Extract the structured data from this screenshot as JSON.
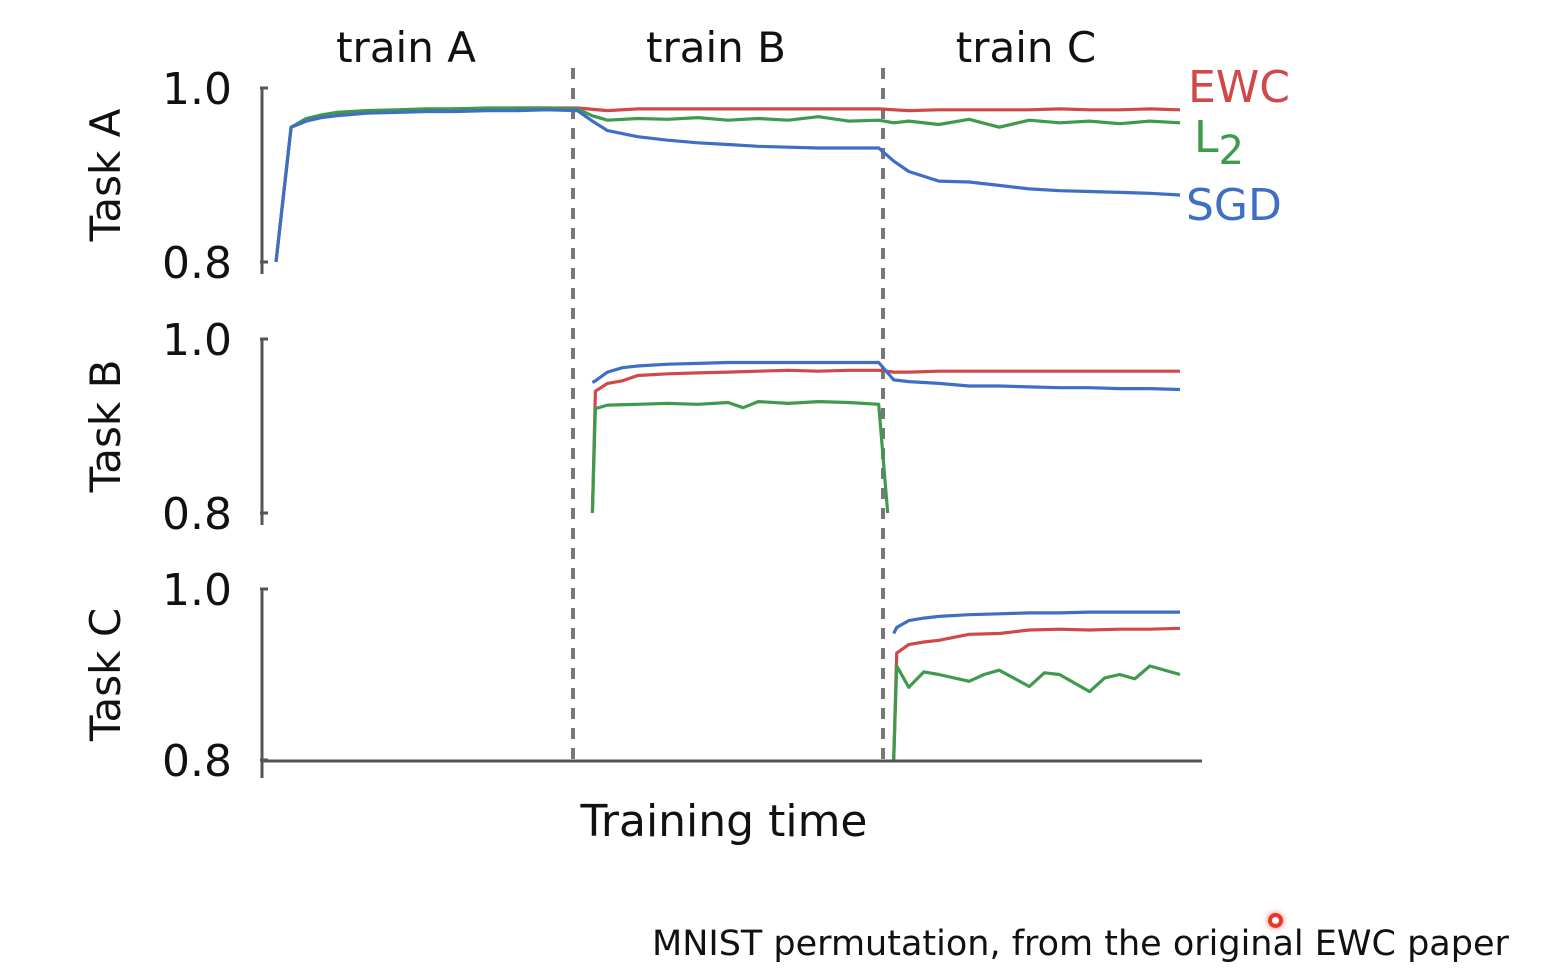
{
  "chart_data": {
    "type": "line",
    "x_label": "Training time",
    "phases": [
      "train A",
      "train B",
      "train C"
    ],
    "colors": {
      "EWC": "#d0494a",
      "L2": "#3e9a4d",
      "SGD": "#3f6fc5",
      "grid": "#777777"
    },
    "legend": [
      {
        "name": "EWC",
        "sub": ""
      },
      {
        "name": "L",
        "sub": "2"
      },
      {
        "name": "SGD",
        "sub": ""
      }
    ],
    "panels": [
      {
        "ylabel": "Task A",
        "ylim": [
          0.8,
          1.0
        ],
        "yticks": [
          "1.0",
          "0.8"
        ],
        "series": [
          {
            "name": "EWC",
            "x": [
              0.0,
              0.05,
              0.1,
              0.15,
              0.2,
              0.3,
              0.4,
              0.5,
              0.6,
              0.7,
              0.8,
              0.9,
              1.0,
              1.1,
              1.2,
              1.3,
              1.4,
              1.5,
              1.6,
              1.7,
              1.8,
              1.9,
              2.0,
              2.1,
              2.2,
              2.3,
              2.4,
              2.5,
              2.6,
              2.7,
              2.8,
              2.9,
              3.0
            ],
            "y": [
              0.8,
              0.955,
              0.962,
              0.966,
              0.969,
              0.972,
              0.974,
              0.975,
              0.976,
              0.976,
              0.977,
              0.977,
              0.977,
              0.974,
              0.976,
              0.976,
              0.976,
              0.976,
              0.976,
              0.976,
              0.976,
              0.976,
              0.976,
              0.974,
              0.975,
              0.975,
              0.975,
              0.975,
              0.976,
              0.975,
              0.975,
              0.976,
              0.975
            ]
          },
          {
            "name": "L2",
            "x": [
              0.0,
              0.05,
              0.1,
              0.15,
              0.2,
              0.3,
              0.4,
              0.5,
              0.6,
              0.7,
              0.8,
              0.9,
              1.0,
              1.05,
              1.1,
              1.2,
              1.3,
              1.4,
              1.5,
              1.6,
              1.7,
              1.8,
              1.9,
              2.0,
              2.05,
              2.1,
              2.2,
              2.3,
              2.4,
              2.5,
              2.6,
              2.7,
              2.8,
              2.9,
              3.0
            ],
            "y": [
              0.8,
              0.955,
              0.965,
              0.969,
              0.972,
              0.974,
              0.975,
              0.976,
              0.976,
              0.977,
              0.977,
              0.977,
              0.976,
              0.968,
              0.963,
              0.965,
              0.964,
              0.966,
              0.963,
              0.965,
              0.963,
              0.967,
              0.962,
              0.963,
              0.96,
              0.962,
              0.958,
              0.964,
              0.955,
              0.963,
              0.96,
              0.962,
              0.959,
              0.962,
              0.96
            ]
          },
          {
            "name": "SGD",
            "x": [
              0.0,
              0.05,
              0.1,
              0.15,
              0.2,
              0.3,
              0.4,
              0.5,
              0.6,
              0.7,
              0.8,
              0.9,
              1.0,
              1.05,
              1.1,
              1.2,
              1.3,
              1.4,
              1.5,
              1.6,
              1.7,
              1.8,
              1.9,
              2.0,
              2.05,
              2.1,
              2.2,
              2.3,
              2.4,
              2.5,
              2.6,
              2.7,
              2.8,
              2.9,
              3.0
            ],
            "y": [
              0.8,
              0.955,
              0.962,
              0.966,
              0.968,
              0.971,
              0.972,
              0.973,
              0.973,
              0.974,
              0.974,
              0.975,
              0.974,
              0.962,
              0.951,
              0.944,
              0.94,
              0.937,
              0.935,
              0.933,
              0.932,
              0.931,
              0.931,
              0.931,
              0.916,
              0.904,
              0.893,
              0.892,
              0.888,
              0.884,
              0.882,
              0.881,
              0.88,
              0.879,
              0.877
            ]
          }
        ]
      },
      {
        "ylabel": "Task B",
        "ylim": [
          0.8,
          1.0
        ],
        "yticks": [
          "1.0",
          "0.8"
        ],
        "series": [
          {
            "name": "EWC",
            "x": [
              1.05,
              1.06,
              1.1,
              1.15,
              1.2,
              1.3,
              1.4,
              1.5,
              1.6,
              1.7,
              1.8,
              1.9,
              2.0,
              2.05,
              2.1,
              2.2,
              2.3,
              2.4,
              2.5,
              2.6,
              2.7,
              2.8,
              2.9,
              3.0
            ],
            "y": [
              0.8,
              0.94,
              0.949,
              0.952,
              0.958,
              0.96,
              0.961,
              0.962,
              0.963,
              0.964,
              0.963,
              0.964,
              0.964,
              0.962,
              0.962,
              0.963,
              0.963,
              0.963,
              0.963,
              0.963,
              0.963,
              0.963,
              0.963,
              0.963
            ]
          },
          {
            "name": "L2",
            "x": [
              1.05,
              1.06,
              1.1,
              1.2,
              1.3,
              1.4,
              1.5,
              1.55,
              1.6,
              1.7,
              1.8,
              1.9,
              2.0,
              2.03
            ],
            "y": [
              0.8,
              0.92,
              0.924,
              0.925,
              0.926,
              0.925,
              0.927,
              0.921,
              0.928,
              0.926,
              0.928,
              0.927,
              0.925,
              0.8
            ]
          },
          {
            "name": "SGD",
            "x": [
              1.05,
              1.06,
              1.1,
              1.15,
              1.2,
              1.3,
              1.4,
              1.5,
              1.6,
              1.7,
              1.8,
              1.9,
              2.0,
              2.05,
              2.1,
              2.2,
              2.3,
              2.4,
              2.5,
              2.6,
              2.7,
              2.8,
              2.9,
              3.0
            ],
            "y": [
              0.95,
              0.952,
              0.962,
              0.967,
              0.969,
              0.971,
              0.972,
              0.973,
              0.973,
              0.973,
              0.973,
              0.973,
              0.973,
              0.953,
              0.951,
              0.949,
              0.946,
              0.946,
              0.945,
              0.944,
              0.944,
              0.943,
              0.943,
              0.942
            ]
          }
        ]
      },
      {
        "ylabel": "Task C",
        "ylim": [
          0.8,
          1.0
        ],
        "yticks": [
          "1.0",
          "0.8"
        ],
        "series": [
          {
            "name": "EWC",
            "x": [
              2.05,
              2.06,
              2.1,
              2.15,
              2.2,
              2.3,
              2.4,
              2.5,
              2.6,
              2.7,
              2.8,
              2.9,
              3.0
            ],
            "y": [
              0.8,
              0.925,
              0.935,
              0.938,
              0.94,
              0.947,
              0.948,
              0.952,
              0.953,
              0.952,
              0.953,
              0.953,
              0.954
            ]
          },
          {
            "name": "L2",
            "x": [
              2.05,
              2.06,
              2.1,
              2.15,
              2.2,
              2.3,
              2.35,
              2.4,
              2.5,
              2.55,
              2.6,
              2.7,
              2.75,
              2.8,
              2.85,
              2.9,
              3.0
            ],
            "y": [
              0.8,
              0.91,
              0.885,
              0.903,
              0.9,
              0.892,
              0.9,
              0.905,
              0.886,
              0.902,
              0.9,
              0.88,
              0.896,
              0.9,
              0.895,
              0.91,
              0.9
            ]
          },
          {
            "name": "SGD",
            "x": [
              2.05,
              2.06,
              2.1,
              2.15,
              2.2,
              2.3,
              2.4,
              2.5,
              2.6,
              2.7,
              2.8,
              2.9,
              3.0
            ],
            "y": [
              0.948,
              0.955,
              0.963,
              0.966,
              0.968,
              0.97,
              0.971,
              0.972,
              0.972,
              0.973,
              0.973,
              0.973,
              0.973
            ]
          }
        ]
      }
    ]
  },
  "caption": "MNIST permutation, from the original EWC paper"
}
